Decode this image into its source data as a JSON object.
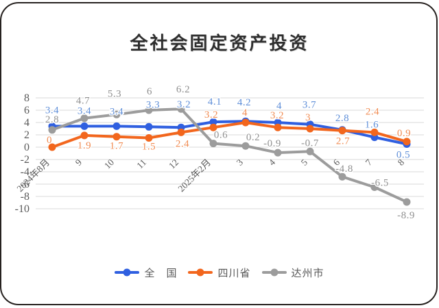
{
  "chart_data": {
    "type": "line",
    "title": "全社会固定资产投资",
    "categories": [
      "2024年8月",
      "9",
      "10",
      "11",
      "12",
      "2025年2月",
      "3",
      "4",
      "5",
      "6",
      "7",
      "8"
    ],
    "series": [
      {
        "name": "全　国",
        "color": "#2f5fe0",
        "label_color": "#5e8ed8",
        "values": [
          3.4,
          3.4,
          3.4,
          3.3,
          3.2,
          4.1,
          4.2,
          4,
          3.7,
          2.8,
          1.6,
          0.5
        ],
        "labels": [
          "3.4",
          "3.4",
          "3.4",
          "3.3",
          "3.2",
          "4.1",
          "4.2",
          "4",
          "3.7",
          "2.8",
          "1.6",
          "0.5"
        ],
        "label_offsets": [
          [
            0,
            -24
          ],
          [
            0,
            -23
          ],
          [
            0,
            -22
          ],
          [
            6,
            -33
          ],
          [
            4,
            -34
          ],
          [
            2,
            -30
          ],
          [
            -2,
            -28
          ],
          [
            2,
            -25
          ],
          [
            -1,
            -29
          ],
          [
            0,
            -18
          ],
          [
            -4,
            -19
          ],
          [
            -5,
            15
          ]
        ]
      },
      {
        "name": "四川省",
        "color": "#f2661d",
        "label_color": "#f08b52",
        "values": [
          0,
          1.9,
          1.7,
          1.5,
          2.4,
          3.2,
          4,
          3.2,
          3,
          2.7,
          2.4,
          0.9
        ],
        "labels": [
          "0",
          "1.9",
          "1.7",
          "1.5",
          "2.4",
          "3.2",
          "4",
          "3.2",
          "3",
          "2.7",
          "2.4",
          "0.9"
        ],
        "label_offsets": [
          [
            -4,
            -11
          ],
          [
            0,
            14
          ],
          [
            0,
            13
          ],
          [
            0,
            12
          ],
          [
            2,
            16
          ],
          [
            -3,
            -19
          ],
          [
            -1,
            -15
          ],
          [
            -1,
            -18
          ],
          [
            -3,
            -17
          ],
          [
            1,
            15
          ],
          [
            -3,
            -31
          ],
          [
            -4,
            -13
          ]
        ]
      },
      {
        "name": "达州市",
        "color": "#9c9c9c",
        "label_color": "#8f8f8f",
        "values": [
          2.8,
          4.7,
          5.3,
          6,
          6.2,
          0.6,
          0.2,
          -0.9,
          -0.7,
          -4.8,
          -6.5,
          -8.9
        ],
        "labels": [
          "2.8",
          "4.7",
          "5.3",
          "6",
          "6.2",
          "0.6",
          "0.2",
          "-0.9",
          "-0.7",
          "-4.8",
          "-6.5",
          "-8.9"
        ],
        "label_offsets": [
          [
            0,
            -16
          ],
          [
            -2,
            -26
          ],
          [
            -3,
            -31
          ],
          [
            1,
            -28
          ],
          [
            3,
            -29
          ],
          [
            11,
            -13
          ],
          [
            11,
            -13
          ],
          [
            -8,
            -14
          ],
          [
            0,
            -13
          ],
          [
            3,
            -12
          ],
          [
            8,
            -7
          ],
          [
            -1,
            19
          ]
        ]
      }
    ],
    "yticks": [
      8,
      6,
      4,
      2,
      0,
      -2,
      -4,
      -6,
      -8,
      -10
    ],
    "ylim": [
      -10,
      8
    ],
    "xlabel": "",
    "ylabel": "",
    "grid": true,
    "legend_position": "bottom",
    "colors": {
      "grid": "#d9d9d9",
      "axis_text": "#595959",
      "title_text": "#2e2e2e",
      "legend_text": "#595959",
      "background": "#ffffff",
      "frame_border": "#26211f"
    }
  }
}
